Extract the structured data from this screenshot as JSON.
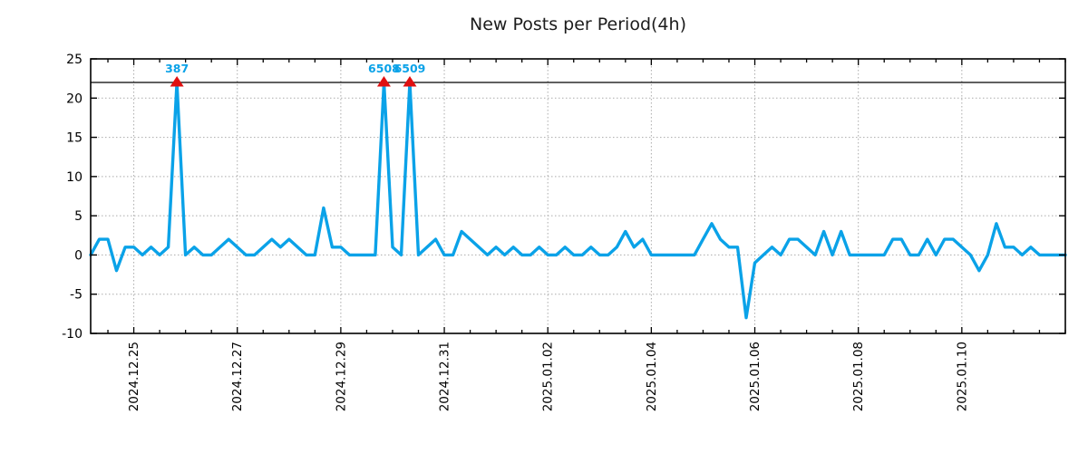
{
  "title": "New Posts per Period(4h)",
  "colors": {
    "line": "#0aa2e8",
    "marker": "#e01010",
    "annotation": "#0aa2e8",
    "grid": "#ababab",
    "axis": "#000000",
    "threshold_line": "#000000",
    "title_color": "#1c1c1c",
    "tick_label_color": "#000000",
    "background": "#ffffff"
  },
  "chart_data": {
    "type": "line",
    "title": "New Posts per Period(4h)",
    "xlabel": "",
    "ylabel": "",
    "legend": null,
    "grid": true,
    "ylim": [
      -10,
      25
    ],
    "y_ticks": [
      -10,
      -5,
      0,
      5,
      10,
      15,
      20,
      25
    ],
    "x_tick_labels": [
      "2024.12.25",
      "2024.12.27",
      "2024.12.29",
      "2024.12.31",
      "2025.01.02",
      "2025.01.04",
      "2025.01.06",
      "2025.01.08",
      "2025.01.10"
    ],
    "x_major_tick_indices": [
      5,
      17,
      29,
      41,
      53,
      65,
      77,
      89,
      101
    ],
    "x_minor_tick_every": 3,
    "x_period_hours": 4,
    "threshold_y": 22,
    "values": [
      0,
      2,
      2,
      -2,
      1,
      1,
      0,
      1,
      0,
      1,
      22,
      0,
      1,
      0,
      0,
      1,
      2,
      1,
      0,
      0,
      1,
      2,
      1,
      2,
      1,
      0,
      0,
      6,
      1,
      1,
      0,
      0,
      0,
      0,
      22,
      1,
      0,
      22,
      0,
      1,
      2,
      0,
      0,
      3,
      2,
      1,
      0,
      1,
      0,
      1,
      0,
      0,
      1,
      0,
      0,
      1,
      0,
      0,
      1,
      0,
      0,
      1,
      3,
      1,
      2,
      0,
      0,
      0,
      0,
      0,
      0,
      2,
      4,
      2,
      1,
      1,
      -8,
      -1,
      0,
      1,
      0,
      2,
      2,
      1,
      0,
      3,
      0,
      3,
      0,
      0,
      0,
      0,
      0,
      2,
      2,
      0,
      0,
      2,
      0,
      2,
      2,
      1,
      0,
      -2,
      0,
      4,
      1,
      1,
      0,
      1,
      0,
      0,
      0,
      0
    ],
    "annotations": [
      {
        "index": 10,
        "label": "387",
        "y": 22
      },
      {
        "index": 34,
        "label": "6508",
        "y": 22
      },
      {
        "index": 37,
        "label": "6509",
        "y": 22
      }
    ]
  }
}
